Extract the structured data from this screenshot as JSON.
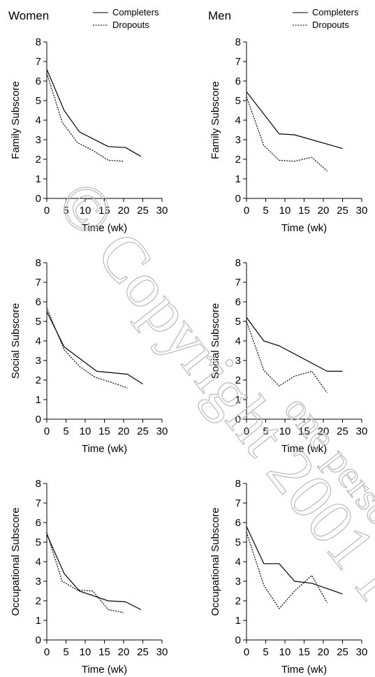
{
  "watermark": "© Copyright 2001 Phy... one personal...",
  "legend": {
    "completers": "Completers",
    "dropouts": "Dropouts"
  },
  "chart_data": [
    {
      "type": "line",
      "title": "Women",
      "xlabel": "Time (wk)",
      "ylabel": "Family Subscore",
      "xlim": [
        0,
        30
      ],
      "ylim": [
        0,
        8
      ],
      "xticks": [
        0,
        5,
        10,
        15,
        20,
        25,
        30
      ],
      "yticks": [
        0,
        1,
        2,
        3,
        4,
        5,
        6,
        7,
        8
      ],
      "show_legend": true,
      "legend_position": "top-right",
      "grid": false,
      "series": [
        {
          "name": "Completers",
          "style": "solid",
          "x": [
            0,
            4.5,
            8.5,
            16,
            20.5,
            24.5
          ],
          "y": [
            6.6,
            4.5,
            3.4,
            2.65,
            2.6,
            2.15
          ]
        },
        {
          "name": "Dropouts",
          "style": "dotted",
          "x": [
            0,
            4,
            8,
            12,
            16,
            20
          ],
          "y": [
            6.4,
            3.9,
            2.85,
            2.45,
            1.95,
            1.9
          ]
        }
      ]
    },
    {
      "type": "line",
      "title": "Men",
      "xlabel": "Time (wk)",
      "ylabel": "Family Subscore",
      "xlim": [
        0,
        30
      ],
      "ylim": [
        0,
        8
      ],
      "xticks": [
        0,
        5,
        10,
        15,
        20,
        25,
        30
      ],
      "yticks": [
        0,
        1,
        2,
        3,
        4,
        5,
        6,
        7,
        8
      ],
      "show_legend": true,
      "legend_position": "top-right",
      "grid": false,
      "series": [
        {
          "name": "Completers",
          "style": "solid",
          "x": [
            0,
            8.5,
            12.5,
            25
          ],
          "y": [
            5.45,
            3.3,
            3.25,
            2.55
          ]
        },
        {
          "name": "Dropouts",
          "style": "dotted",
          "x": [
            0,
            4.5,
            8.5,
            12.5,
            17,
            21
          ],
          "y": [
            5.2,
            2.7,
            1.95,
            1.9,
            2.1,
            1.4
          ]
        }
      ]
    },
    {
      "type": "line",
      "title": "",
      "xlabel": "Time (wk)",
      "ylabel": "Social Subscore",
      "xlim": [
        0,
        30
      ],
      "ylim": [
        0,
        8
      ],
      "xticks": [
        0,
        5,
        10,
        15,
        20,
        25,
        30
      ],
      "yticks": [
        0,
        1,
        2,
        3,
        4,
        5,
        6,
        7,
        8
      ],
      "show_legend": false,
      "grid": false,
      "series": [
        {
          "name": "Completers",
          "style": "solid",
          "x": [
            0,
            4.5,
            13,
            21,
            25
          ],
          "y": [
            5.5,
            3.7,
            2.45,
            2.3,
            1.8
          ]
        },
        {
          "name": "Dropouts",
          "style": "dotted",
          "x": [
            0,
            4.5,
            8.5,
            12.5,
            16.5,
            21
          ],
          "y": [
            5.7,
            3.55,
            2.7,
            2.15,
            1.9,
            1.6
          ]
        }
      ]
    },
    {
      "type": "line",
      "title": "",
      "xlabel": "Time (wk)",
      "ylabel": "Social Subscore",
      "xlim": [
        0,
        30
      ],
      "ylim": [
        0,
        8
      ],
      "xticks": [
        0,
        5,
        10,
        15,
        20,
        25,
        30
      ],
      "yticks": [
        0,
        1,
        2,
        3,
        4,
        5,
        6,
        7,
        8
      ],
      "show_legend": false,
      "grid": false,
      "series": [
        {
          "name": "Completers",
          "style": "solid",
          "x": [
            0,
            4.5,
            8.5,
            21,
            25
          ],
          "y": [
            5.2,
            4.0,
            3.75,
            2.45,
            2.45
          ]
        },
        {
          "name": "Dropouts",
          "style": "dotted",
          "x": [
            0,
            4.5,
            8.5,
            12.5,
            17,
            21
          ],
          "y": [
            5.0,
            2.5,
            1.7,
            2.2,
            2.45,
            1.35
          ]
        }
      ]
    },
    {
      "type": "line",
      "title": "",
      "xlabel": "Time (wk)",
      "ylabel": "Occupational Subscore",
      "xlim": [
        0,
        30
      ],
      "ylim": [
        0,
        8
      ],
      "xticks": [
        0,
        5,
        10,
        15,
        20,
        25,
        30
      ],
      "yticks": [
        0,
        1,
        2,
        3,
        4,
        5,
        6,
        7,
        8
      ],
      "show_legend": false,
      "grid": false,
      "series": [
        {
          "name": "Completers",
          "style": "solid",
          "x": [
            0,
            4.5,
            8.5,
            16,
            20.5,
            24.5
          ],
          "y": [
            5.4,
            3.4,
            2.5,
            2.0,
            1.95,
            1.55
          ]
        },
        {
          "name": "Dropouts",
          "style": "dotted",
          "x": [
            0,
            4,
            8,
            12,
            16,
            20
          ],
          "y": [
            5.5,
            3.0,
            2.55,
            2.5,
            1.55,
            1.4
          ]
        }
      ]
    },
    {
      "type": "line",
      "title": "",
      "xlabel": "Time (wk)",
      "ylabel": "Occupational Subscore",
      "xlim": [
        0,
        30
      ],
      "ylim": [
        0,
        8
      ],
      "xticks": [
        0,
        5,
        10,
        15,
        20,
        25,
        30
      ],
      "yticks": [
        0,
        1,
        2,
        3,
        4,
        5,
        6,
        7,
        8
      ],
      "show_legend": false,
      "grid": false,
      "series": [
        {
          "name": "Completers",
          "style": "solid",
          "x": [
            0,
            4.5,
            8.5,
            12.5,
            17,
            25
          ],
          "y": [
            5.8,
            3.9,
            3.9,
            3.0,
            2.9,
            2.35
          ]
        },
        {
          "name": "Dropouts",
          "style": "dotted",
          "x": [
            0,
            4.5,
            8.5,
            12.5,
            17,
            21
          ],
          "y": [
            5.5,
            2.8,
            1.6,
            2.5,
            3.3,
            1.9
          ]
        }
      ]
    }
  ]
}
